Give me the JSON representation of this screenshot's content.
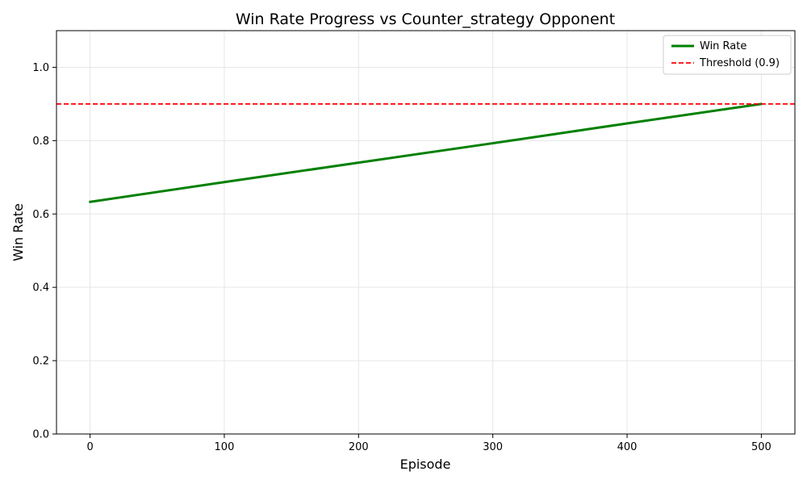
{
  "chart_data": {
    "type": "line",
    "title": "Win Rate Progress vs Counter_strategy Opponent",
    "xlabel": "Episode",
    "ylabel": "Win Rate",
    "xlim": [
      -25,
      525
    ],
    "ylim": [
      0,
      1.1
    ],
    "x_ticks": [
      0,
      100,
      200,
      300,
      400,
      500
    ],
    "y_ticks": [
      0.0,
      0.2,
      0.4,
      0.6,
      0.8,
      1.0
    ],
    "x_tick_labels": [
      "0",
      "100",
      "200",
      "300",
      "400",
      "500"
    ],
    "y_tick_labels": [
      "0.0",
      "0.2",
      "0.4",
      "0.6",
      "0.8",
      "1.0"
    ],
    "grid": true,
    "legend_position": "top-right",
    "series": [
      {
        "name": "Win Rate",
        "color": "#008000",
        "style": "solid",
        "x": [
          0,
          100,
          200,
          300,
          400,
          500
        ],
        "y": [
          0.633,
          0.687,
          0.74,
          0.793,
          0.847,
          0.9
        ]
      }
    ],
    "reference_lines": [
      {
        "name": "Threshold (0.9)",
        "color": "#ff0000",
        "style": "dashed",
        "y": 0.9
      }
    ]
  }
}
